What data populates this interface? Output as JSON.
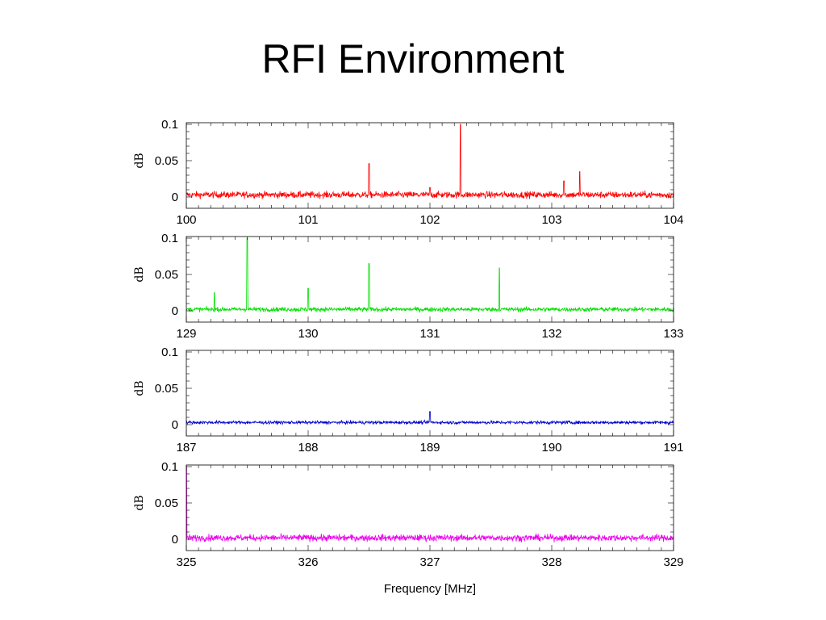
{
  "slide": {
    "title": "RFI Environment"
  },
  "chart_data": [
    {
      "type": "line",
      "color": "#ff0000",
      "xlim": [
        100,
        104
      ],
      "ylim": [
        0,
        0.1
      ],
      "xticks": [
        "100",
        "101",
        "102",
        "103",
        "104"
      ],
      "yticks": [
        "0",
        "0.05",
        "0.1"
      ],
      "ylabel": "dB",
      "xlabel": "",
      "baseline": 0.003,
      "noise": 0.0045,
      "peaks": [
        {
          "x": 101.5,
          "y": 0.046
        },
        {
          "x": 102.0,
          "y": 0.013
        },
        {
          "x": 102.25,
          "y": 0.1
        },
        {
          "x": 103.1,
          "y": 0.022
        },
        {
          "x": 103.23,
          "y": 0.035
        }
      ]
    },
    {
      "type": "line",
      "color": "#00e000",
      "xlim": [
        129,
        133
      ],
      "ylim": [
        0,
        0.1
      ],
      "xticks": [
        "129",
        "130",
        "131",
        "132",
        "133"
      ],
      "yticks": [
        "0",
        "0.05",
        "0.1"
      ],
      "ylabel": "dB",
      "xlabel": "",
      "baseline": 0.002,
      "noise": 0.003,
      "peaks": [
        {
          "x": 129.23,
          "y": 0.025
        },
        {
          "x": 129.5,
          "y": 0.1
        },
        {
          "x": 130.0,
          "y": 0.031
        },
        {
          "x": 130.5,
          "y": 0.065
        },
        {
          "x": 131.57,
          "y": 0.059
        }
      ]
    },
    {
      "type": "line",
      "color": "#0000cc",
      "xlim": [
        187,
        191
      ],
      "ylim": [
        0,
        0.1
      ],
      "xticks": [
        "187",
        "188",
        "189",
        "190",
        "191"
      ],
      "yticks": [
        "0",
        "0.05",
        "0.1"
      ],
      "ylabel": "dB",
      "xlabel": "",
      "baseline": 0.003,
      "noise": 0.0022,
      "peaks": [
        {
          "x": 189.0,
          "y": 0.018
        }
      ]
    },
    {
      "type": "line",
      "color": "#ee00ee",
      "xlim": [
        325,
        329
      ],
      "ylim": [
        0,
        0.1
      ],
      "xticks": [
        "325",
        "326",
        "327",
        "328",
        "329"
      ],
      "yticks": [
        "0",
        "0.05",
        "0.1"
      ],
      "ylabel": "dB",
      "xlabel": "Frequency [MHz]",
      "baseline": 0.002,
      "noise": 0.0045,
      "peaks": [
        {
          "x": 325.0,
          "y": 0.1
        }
      ]
    }
  ]
}
